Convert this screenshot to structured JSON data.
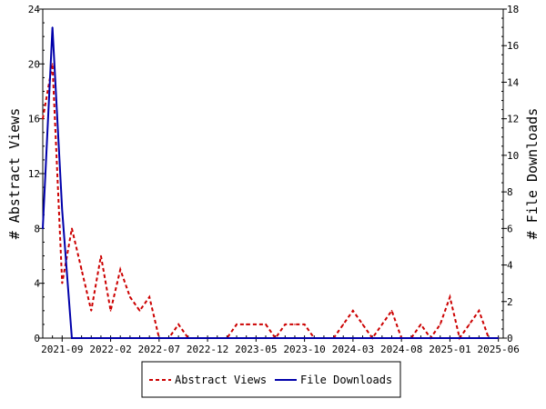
{
  "chart_data": {
    "type": "line",
    "x_tick_labels": [
      "2021-09",
      "2022-02",
      "2022-07",
      "2022-12",
      "2023-05",
      "2023-10",
      "2024-03",
      "2024-08",
      "2025-01",
      "2025-06"
    ],
    "y_left": {
      "label": "# Abstract Views",
      "ticks": [
        0,
        4,
        8,
        12,
        16,
        20,
        24
      ],
      "range": [
        0,
        24
      ]
    },
    "y_right": {
      "label": "# File Downloads",
      "ticks": [
        0,
        2,
        4,
        6,
        8,
        10,
        12,
        14,
        16,
        18
      ],
      "range": [
        0,
        18
      ]
    },
    "legend_position": "bottom",
    "series": [
      {
        "name": "Abstract Views",
        "axis": "left",
        "color": "#cc0000",
        "style": "dashed",
        "x": [
          "2021-07",
          "2021-08",
          "2021-09",
          "2021-10",
          "2021-11",
          "2021-12",
          "2022-01",
          "2022-02",
          "2022-03",
          "2022-04",
          "2022-05",
          "2022-06",
          "2022-07",
          "2022-08",
          "2022-09",
          "2022-10",
          "2022-11",
          "2022-12",
          "2023-01",
          "2023-02",
          "2023-03",
          "2023-04",
          "2023-05",
          "2023-06",
          "2023-07",
          "2023-08",
          "2023-09",
          "2023-10",
          "2023-11",
          "2023-12",
          "2024-01",
          "2024-02",
          "2024-03",
          "2024-04",
          "2024-05",
          "2024-06",
          "2024-07",
          "2024-08",
          "2024-09",
          "2024-10",
          "2024-11",
          "2024-12",
          "2025-01",
          "2025-02",
          "2025-03",
          "2025-04",
          "2025-05",
          "2025-06"
        ],
        "values": [
          16,
          20,
          4,
          8,
          5,
          2,
          6,
          2,
          5,
          3,
          2,
          3,
          0,
          0,
          1,
          0,
          0,
          0,
          0,
          0,
          1,
          1,
          1,
          1,
          0,
          1,
          1,
          1,
          0,
          0,
          0,
          1,
          2,
          1,
          0,
          1,
          2,
          0,
          0,
          1,
          0,
          1,
          3,
          0,
          1,
          2,
          0,
          0
        ]
      },
      {
        "name": "File Downloads",
        "axis": "right",
        "color": "#0000aa",
        "style": "solid",
        "x": [
          "2021-07",
          "2021-08",
          "2021-09",
          "2021-10",
          "2021-11",
          "2021-12",
          "2022-01",
          "2022-02",
          "2022-03",
          "2022-04",
          "2022-05",
          "2022-06",
          "2022-07",
          "2022-08",
          "2022-09",
          "2022-10",
          "2022-11",
          "2022-12",
          "2023-01",
          "2023-02",
          "2023-03",
          "2023-04",
          "2023-05",
          "2023-06",
          "2023-07",
          "2023-08",
          "2023-09",
          "2023-10",
          "2023-11",
          "2023-12",
          "2024-01",
          "2024-02",
          "2024-03",
          "2024-04",
          "2024-05",
          "2024-06",
          "2024-07",
          "2024-08",
          "2024-09",
          "2024-10",
          "2024-11",
          "2024-12",
          "2025-01",
          "2025-02",
          "2025-03",
          "2025-04",
          "2025-05",
          "2025-06"
        ],
        "values": [
          6,
          17,
          7,
          0,
          0,
          0,
          0,
          0,
          0,
          0,
          0,
          0,
          0,
          0,
          0,
          0,
          0,
          0,
          0,
          0,
          0,
          0,
          0,
          0,
          0,
          0,
          0,
          0,
          0,
          0,
          0,
          0,
          0,
          0,
          0,
          0,
          0,
          0,
          0,
          0,
          0,
          0,
          0,
          0,
          0,
          0,
          0,
          0
        ]
      }
    ]
  }
}
